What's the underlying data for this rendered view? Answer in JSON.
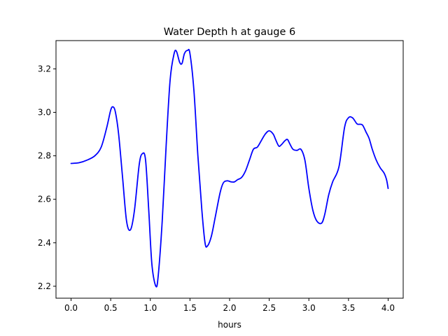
{
  "chart_data": {
    "type": "line",
    "title": "Water Depth h at gauge 6",
    "xlabel": "hours",
    "ylabel": "",
    "xlim": [
      -0.19,
      4.19
    ],
    "ylim": [
      2.145,
      3.33
    ],
    "xticks": [
      0.0,
      0.5,
      1.0,
      1.5,
      2.0,
      2.5,
      3.0,
      3.5,
      4.0
    ],
    "xtick_labels": [
      "0.0",
      "0.5",
      "1.0",
      "1.5",
      "2.0",
      "2.5",
      "3.0",
      "3.5",
      "4.0"
    ],
    "yticks": [
      2.2,
      2.4,
      2.6,
      2.8,
      3.0,
      3.2
    ],
    "ytick_labels": [
      "2.2",
      "2.4",
      "2.6",
      "2.8",
      "3.0",
      "3.2"
    ],
    "grid": false,
    "color": "#0000ff",
    "series": [
      {
        "x": [
          0.0,
          0.1,
          0.2,
          0.3,
          0.38,
          0.45,
          0.5,
          0.53,
          0.56,
          0.6,
          0.65,
          0.7,
          0.75,
          0.8,
          0.86,
          0.9,
          0.94,
          0.98,
          1.02,
          1.07,
          1.1,
          1.15,
          1.2,
          1.25,
          1.3,
          1.33,
          1.37,
          1.4,
          1.43,
          1.47,
          1.5,
          1.55,
          1.6,
          1.65,
          1.69,
          1.72,
          1.77,
          1.82,
          1.88,
          1.92,
          1.97,
          2.02,
          2.06,
          2.1,
          2.15,
          2.2,
          2.25,
          2.3,
          2.35,
          2.4,
          2.45,
          2.5,
          2.55,
          2.58,
          2.62,
          2.65,
          2.7,
          2.73,
          2.76,
          2.8,
          2.85,
          2.9,
          2.95,
          3.0,
          3.05,
          3.1,
          3.16,
          3.2,
          3.25,
          3.3,
          3.38,
          3.45,
          3.5,
          3.55,
          3.6,
          3.62,
          3.65,
          3.68,
          3.72,
          3.76,
          3.8,
          3.85,
          3.9,
          3.95,
          3.98,
          4.0
        ],
        "y": [
          2.765,
          2.768,
          2.78,
          2.8,
          2.84,
          2.93,
          3.01,
          3.025,
          3.0,
          2.9,
          2.7,
          2.5,
          2.46,
          2.55,
          2.76,
          2.81,
          2.78,
          2.55,
          2.3,
          2.2,
          2.25,
          2.5,
          2.85,
          3.15,
          3.27,
          3.28,
          3.23,
          3.225,
          3.27,
          3.285,
          3.27,
          3.1,
          2.8,
          2.55,
          2.4,
          2.385,
          2.43,
          2.52,
          2.63,
          2.675,
          2.685,
          2.68,
          2.68,
          2.69,
          2.7,
          2.73,
          2.78,
          2.83,
          2.84,
          2.87,
          2.9,
          2.915,
          2.9,
          2.875,
          2.845,
          2.85,
          2.87,
          2.875,
          2.855,
          2.83,
          2.825,
          2.83,
          2.78,
          2.65,
          2.55,
          2.5,
          2.49,
          2.53,
          2.62,
          2.68,
          2.75,
          2.93,
          2.975,
          2.975,
          2.95,
          2.945,
          2.945,
          2.94,
          2.91,
          2.88,
          2.83,
          2.78,
          2.745,
          2.72,
          2.69,
          2.65
        ]
      }
    ]
  }
}
